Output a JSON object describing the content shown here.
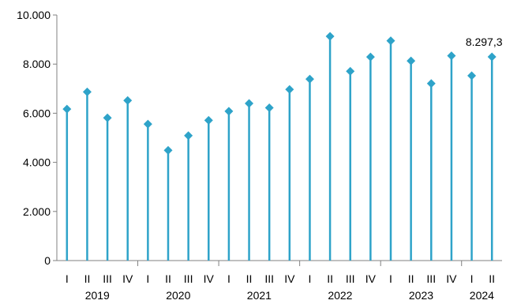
{
  "chart_data": {
    "type": "line",
    "style": "lollipop",
    "title": "",
    "xlabel": "",
    "ylabel": "",
    "ylim": [
      0,
      10000
    ],
    "yticks": [
      0,
      2000,
      4000,
      6000,
      8000,
      10000
    ],
    "ytick_labels": [
      "0",
      "2.000",
      "4.000",
      "6.000",
      "8.000",
      "10.000"
    ],
    "grid": false,
    "legend": "none",
    "colors": {
      "series": "#2ea3c9",
      "axis": "#808080",
      "text": "#000000"
    },
    "categories": [
      "I",
      "II",
      "III",
      "IV",
      "I",
      "II",
      "III",
      "IV",
      "I",
      "II",
      "III",
      "IV",
      "I",
      "II",
      "III",
      "IV",
      "I",
      "II",
      "III",
      "IV",
      "I",
      "II"
    ],
    "years": [
      {
        "label": "2019",
        "quarters": 4
      },
      {
        "label": "2020",
        "quarters": 4
      },
      {
        "label": "2021",
        "quarters": 4
      },
      {
        "label": "2022",
        "quarters": 4
      },
      {
        "label": "2023",
        "quarters": 4
      },
      {
        "label": "2024",
        "quarters": 2
      }
    ],
    "values": [
      6170,
      6870,
      5810,
      6520,
      5560,
      4490,
      5090,
      5710,
      6080,
      6400,
      6220,
      6970,
      7390,
      9130,
      7710,
      8290,
      8950,
      8130,
      7210,
      8340,
      7530,
      8297.3
    ],
    "annotations": [
      {
        "index": 21,
        "text": "8.297,3"
      }
    ]
  }
}
